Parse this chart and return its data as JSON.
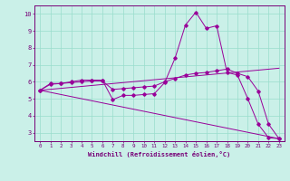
{
  "xlabel": "Windchill (Refroidissement éolien,°C)",
  "background_color": "#caf0e8",
  "grid_color": "#99ddcc",
  "line_color": "#990099",
  "x_values": [
    0,
    1,
    2,
    3,
    4,
    5,
    6,
    7,
    8,
    9,
    10,
    11,
    12,
    13,
    14,
    15,
    16,
    17,
    18,
    19,
    20,
    21,
    22,
    23
  ],
  "line1": [
    5.5,
    5.9,
    5.9,
    6.0,
    6.1,
    6.1,
    6.1,
    4.95,
    5.2,
    5.2,
    5.25,
    5.3,
    5.95,
    7.4,
    9.35,
    10.1,
    9.15,
    9.3,
    6.55,
    6.4,
    5.0,
    3.5,
    2.7,
    2.65
  ],
  "line2": [
    5.5,
    5.85,
    5.9,
    5.95,
    6.0,
    6.05,
    6.05,
    5.55,
    5.6,
    5.65,
    5.7,
    5.75,
    6.0,
    6.2,
    6.4,
    6.5,
    6.55,
    6.65,
    6.75,
    6.5,
    6.3,
    5.45,
    3.5,
    2.65
  ],
  "line3_x": [
    0,
    23
  ],
  "line3_y": [
    5.5,
    6.8
  ],
  "line4_x": [
    0,
    23
  ],
  "line4_y": [
    5.5,
    2.65
  ],
  "ylim": [
    2.5,
    10.5
  ],
  "xlim": [
    -0.5,
    23.5
  ],
  "yticks": [
    3,
    4,
    5,
    6,
    7,
    8,
    9,
    10
  ],
  "xticks": [
    0,
    1,
    2,
    3,
    4,
    5,
    6,
    7,
    8,
    9,
    10,
    11,
    12,
    13,
    14,
    15,
    16,
    17,
    18,
    19,
    20,
    21,
    22,
    23
  ]
}
